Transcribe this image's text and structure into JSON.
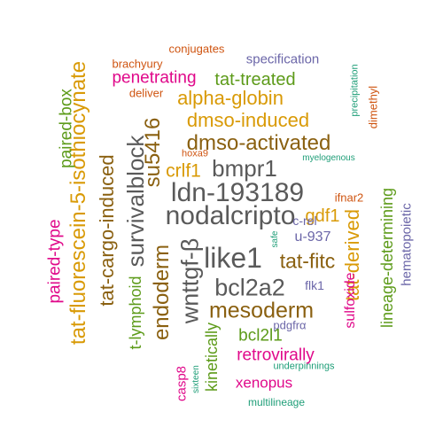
{
  "words": [
    {
      "text": "nodalcripto",
      "color": "gray"
    },
    {
      "text": "ldn-193189",
      "color": "gray"
    },
    {
      "text": "like1",
      "color": "gray"
    },
    {
      "text": "wnttgf-β",
      "color": "gray"
    },
    {
      "text": "bcl2a2",
      "color": "gray"
    },
    {
      "text": "survivalblock",
      "color": "gray"
    },
    {
      "text": "dmso-activated",
      "color": "brown"
    },
    {
      "text": "bmpr1",
      "color": "gray"
    },
    {
      "text": "mesoderm",
      "color": "brown"
    },
    {
      "text": "tat-cargo-induced",
      "color": "brown"
    },
    {
      "text": "tat-fluorescein-5-isothiocynate",
      "color": "orange"
    },
    {
      "text": "su5416",
      "color": "brown"
    },
    {
      "text": "endoderm",
      "color": "brown"
    },
    {
      "text": "tat-fitc",
      "color": "brown"
    },
    {
      "text": "dmso-induced",
      "color": "orange"
    },
    {
      "text": "alpha-globin",
      "color": "orange"
    },
    {
      "text": "tat-derived",
      "color": "orange"
    },
    {
      "text": "lineage-determining",
      "color": "green"
    },
    {
      "text": "gdf1",
      "color": "orange"
    },
    {
      "text": "crlf1",
      "color": "orange"
    },
    {
      "text": "tat-treated",
      "color": "green"
    },
    {
      "text": "penetrating",
      "color": "pink"
    },
    {
      "text": "paired-box",
      "color": "green"
    },
    {
      "text": "paired-type",
      "color": "pink"
    },
    {
      "text": "t-lymphoid",
      "color": "green"
    },
    {
      "text": "kinetically",
      "color": "green"
    },
    {
      "text": "bcl2l1",
      "color": "green"
    },
    {
      "text": "retrovirally",
      "color": "pink"
    },
    {
      "text": "xenopus",
      "color": "pink"
    },
    {
      "text": "sulfoxide",
      "color": "pink"
    },
    {
      "text": "hematopoietic",
      "color": "purple"
    },
    {
      "text": "specification",
      "color": "purple"
    },
    {
      "text": "u-937",
      "color": "purple"
    },
    {
      "text": "flk1",
      "color": "purple"
    },
    {
      "text": "c-rel",
      "color": "purple"
    },
    {
      "text": "pdgfrα",
      "color": "purple"
    },
    {
      "text": "casp8",
      "color": "pink"
    },
    {
      "text": "conjugates",
      "color": "red"
    },
    {
      "text": "brachyury",
      "color": "red"
    },
    {
      "text": "deliver",
      "color": "red"
    },
    {
      "text": "hoxa9",
      "color": "red"
    },
    {
      "text": "ifnar2",
      "color": "red"
    },
    {
      "text": "dimethyl",
      "color": "red"
    },
    {
      "text": "precipitation",
      "color": "teal"
    },
    {
      "text": "myelogenous",
      "color": "teal"
    },
    {
      "text": "safe",
      "color": "teal"
    },
    {
      "text": "sixteen",
      "color": "teal"
    },
    {
      "text": "underpinnings",
      "color": "teal"
    },
    {
      "text": "multilineage",
      "color": "teal"
    }
  ]
}
